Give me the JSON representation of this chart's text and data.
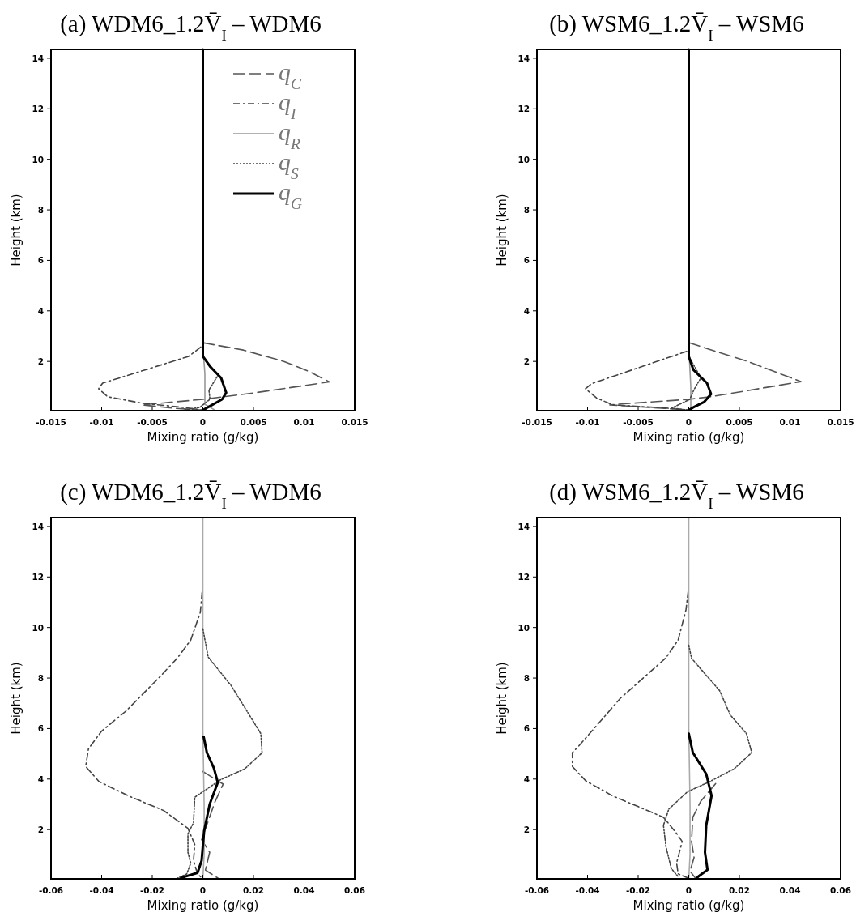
{
  "chart_data": [
    {
      "type": "line",
      "title": "(a) WDM6_1.2V̄$_{I}$ – WDM6",
      "xlabel": "Mixing ratio (g/kg)",
      "ylabel": "Height (km)",
      "xlim": [
        -0.015,
        0.015
      ],
      "ylim": [
        0.05,
        14.35
      ],
      "xticks": [
        -0.015,
        -0.01,
        -0.005,
        0,
        0.005,
        0.01,
        0.015
      ],
      "yticks": [
        2,
        4,
        6,
        8,
        10,
        12,
        14
      ],
      "legend": "top right",
      "series": [
        {
          "name": "q$_{C}$",
          "color": "#555555",
          "line_style": "dashed",
          "x": [
            0,
            0.004,
            0.008,
            0.0105,
            0.0125,
            0.005,
            0,
            -0.006,
            -0.003,
            0
          ],
          "values": [
            2.74,
            2.45,
            2.0,
            1.6,
            1.19,
            0.75,
            0.5,
            0.28,
            0.15,
            0.07
          ]
        },
        {
          "name": "q$_{I}$",
          "color": "#444444",
          "line_style": "dashdot",
          "x": [
            -0.0002,
            -0.0014,
            -0.0099,
            -0.0103,
            -0.0094,
            -0.0059,
            -0.0019,
            0
          ],
          "values": [
            2.57,
            2.2,
            1.14,
            0.92,
            0.6,
            0.34,
            0.18,
            0.07
          ]
        },
        {
          "name": "q$_{R}$",
          "color": "#999999",
          "line_style": "solid",
          "x": [
            0,
            0.0002,
            0.0002,
            0.0012
          ],
          "values": [
            2.6,
            1.5,
            0.3,
            0.07
          ]
        },
        {
          "name": "q$_{S}$",
          "color": "#444444",
          "line_style": "dotted",
          "x": [
            0,
            0.0015,
            0.0006,
            0.0007,
            -0.0003,
            -0.0019
          ],
          "values": [
            2.2,
            1.45,
            0.87,
            0.5,
            0.18,
            0.07
          ]
        },
        {
          "name": "q$_{G}$",
          "color": "#000000",
          "line_style": "solid",
          "x": [
            0,
            0,
            0.00075,
            0.0018,
            0.0023,
            0.0019,
            0.0007,
            0
          ],
          "values": [
            14.35,
            2.2,
            1.78,
            1.35,
            0.76,
            0.5,
            0.23,
            0.07
          ]
        }
      ]
    },
    {
      "type": "line",
      "title": "(b) WSM6_1.2V̄$_{I}$ – WSM6",
      "xlabel": "Mixing ratio (g/kg)",
      "ylabel": "Height (km)",
      "xlim": [
        -0.015,
        0.015
      ],
      "ylim": [
        0.05,
        14.35
      ],
      "xticks": [
        -0.015,
        -0.01,
        -0.005,
        0,
        0.005,
        0.01,
        0.015
      ],
      "yticks": [
        2,
        4,
        6,
        8,
        10,
        12,
        14
      ],
      "series": [
        {
          "color": "#555555",
          "line_style": "dashed",
          "x": [
            0,
            0.0058,
            0.0111,
            0.0023,
            0,
            -0.0078,
            -0.0017,
            0
          ],
          "values": [
            2.74,
            2.0,
            1.2,
            0.61,
            0.5,
            0.28,
            0.12,
            0.07
          ]
        },
        {
          "color": "#444444",
          "line_style": "dashdot",
          "x": [
            -0.0002,
            -0.0096,
            -0.0102,
            -0.0091,
            -0.0075,
            -0.0022,
            0
          ],
          "values": [
            2.4,
            1.12,
            0.92,
            0.55,
            0.28,
            0.15,
            0.07
          ]
        },
        {
          "color": "#999999",
          "line_style": "solid",
          "x": [
            0,
            0.0002,
            0.0002
          ],
          "values": [
            2.6,
            1.0,
            0.12
          ]
        },
        {
          "color": "#444444",
          "line_style": "dotted",
          "x": [
            0,
            0.0012,
            0.0005,
            0.0001,
            -0.0017,
            0
          ],
          "values": [
            2.2,
            1.35,
            0.87,
            0.5,
            0.15,
            0.07
          ]
        },
        {
          "color": "#000000",
          "line_style": "solid",
          "x": [
            0,
            0,
            0.00045,
            0.0018,
            0.0022,
            0.0015,
            0.00045,
            0
          ],
          "values": [
            14.35,
            2.2,
            1.67,
            1.14,
            0.71,
            0.39,
            0.18,
            0.07
          ]
        }
      ]
    },
    {
      "type": "line",
      "title": "(c) WDM6_1.2V̄$_{I}$ – WDM6",
      "xlabel": "Mixing ratio (g/kg)",
      "ylabel": "Height (km)",
      "xlim": [
        -0.06,
        0.06
      ],
      "ylim": [
        0.05,
        14.35
      ],
      "xticks": [
        -0.06,
        -0.04,
        -0.02,
        0,
        0.02,
        0.04,
        0.06
      ],
      "yticks": [
        2,
        4,
        6,
        8,
        10,
        12,
        14
      ],
      "series": [
        {
          "color": "#555555",
          "line_style": "dashed",
          "x": [
            0,
            0.008,
            0.0048,
            0.0016,
            -0.0005,
            0.0027,
            0.001,
            0.0064
          ],
          "values": [
            4.3,
            3.8,
            3.1,
            2.2,
            1.6,
            1.1,
            0.4,
            0.05
          ]
        },
        {
          "color": "#444444",
          "line_style": "dashdot",
          "x": [
            -0.0003,
            -0.001,
            -0.0048,
            -0.01,
            -0.0165,
            -0.0303,
            -0.04,
            -0.0452,
            -0.0463,
            -0.041,
            -0.0293,
            -0.0154,
            -0.0059,
            -0.0032,
            -0.0037,
            -0.0021,
            0
          ],
          "values": [
            11.4,
            10.6,
            9.5,
            8.8,
            8.1,
            6.7,
            5.9,
            5.2,
            4.5,
            3.9,
            3.33,
            2.75,
            2.05,
            1.41,
            0.77,
            0.24,
            0.05
          ]
        },
        {
          "color": "#aaaaaa",
          "line_style": "solid",
          "x": [
            0,
            0,
            0,
            0.0005,
            0.0005,
            0
          ],
          "values": [
            14.35,
            10,
            6,
            3,
            1,
            0.05
          ]
        },
        {
          "color": "#444444",
          "line_style": "dotted",
          "x": [
            0,
            0.0021,
            0.0112,
            0.0229,
            0.0234,
            0.0165,
            0.0069,
            -0.0032,
            -0.0037,
            -0.0059,
            -0.0059,
            -0.0048,
            -0.0064,
            -0.0106
          ],
          "values": [
            9.95,
            8.83,
            7.7,
            5.8,
            5.04,
            4.4,
            3.97,
            3.28,
            2.27,
            1.84,
            1.1,
            0.67,
            0.24,
            0.05
          ]
        },
        {
          "color": "#000000",
          "line_style": "solid",
          "x": [
            0.0003,
            0.0016,
            0.0043,
            0.0059,
            0.0027,
            0.0005,
            -0.0005,
            -0.0021,
            -0.008,
            -0.009
          ],
          "values": [
            5.68,
            5.04,
            4.45,
            3.87,
            3.01,
            1.95,
            0.77,
            0.29,
            0.11,
            0.05
          ]
        }
      ]
    },
    {
      "type": "line",
      "title": "(d) WSM6_1.2V̄$_{I}$ – WSM6",
      "xlabel": "Mixing ratio (g/kg)",
      "ylabel": "Height (km)",
      "xlim": [
        -0.06,
        0.06
      ],
      "ylim": [
        0.05,
        14.35
      ],
      "xticks": [
        -0.06,
        -0.04,
        -0.02,
        0,
        0.02,
        0.04,
        0.06
      ],
      "yticks": [
        2,
        4,
        6,
        8,
        10,
        12,
        14
      ],
      "series": [
        {
          "color": "#555555",
          "line_style": "dashed",
          "x": [
            0.0106,
            0.0048,
            0.0016,
            0.0011,
            0.0021,
            0.0005,
            0.0027
          ],
          "values": [
            3.82,
            3.13,
            2.49,
            1.53,
            0.89,
            0.36,
            0.07
          ]
        },
        {
          "color": "#444444",
          "line_style": "dashdot",
          "x": [
            -0.0002,
            -0.0011,
            -0.0042,
            -0.009,
            -0.027,
            -0.0439,
            -0.046,
            -0.046,
            -0.0407,
            -0.0302,
            -0.01,
            -0.0048,
            -0.0026,
            -0.0048,
            -0.0042,
            0
          ],
          "values": [
            11.45,
            10.7,
            9.5,
            8.8,
            7.2,
            5.26,
            5.05,
            4.5,
            3.93,
            3.34,
            2.49,
            1.85,
            1.53,
            0.68,
            0.25,
            0.07
          ]
        },
        {
          "color": "#aaaaaa",
          "line_style": "solid",
          "x": [
            0,
            0,
            0,
            0.0005,
            0.0005,
            0
          ],
          "values": [
            14.35,
            10,
            6,
            3,
            1,
            0.05
          ]
        },
        {
          "color": "#444444",
          "line_style": "dotted",
          "x": [
            0,
            0.0011,
            0.0122,
            0.0164,
            0.0228,
            0.0249,
            0.018,
            0.0079,
            -0.0005,
            -0.0079,
            -0.01,
            -0.009,
            -0.0069,
            -0.0042
          ],
          "values": [
            9.3,
            8.78,
            7.5,
            6.54,
            5.8,
            5.05,
            4.41,
            3.88,
            3.5,
            2.81,
            2.17,
            1.32,
            0.46,
            0.14
          ]
        },
        {
          "color": "#000000",
          "line_style": "solid",
          "x": [
            0,
            0.0016,
            0.0069,
            0.009,
            0.0069,
            0.0064,
            0.0074,
            0.0037,
            0.0032
          ],
          "values": [
            5.8,
            5.05,
            4.2,
            3.34,
            2.17,
            1.1,
            0.41,
            0.14,
            0.07
          ]
        }
      ]
    }
  ]
}
